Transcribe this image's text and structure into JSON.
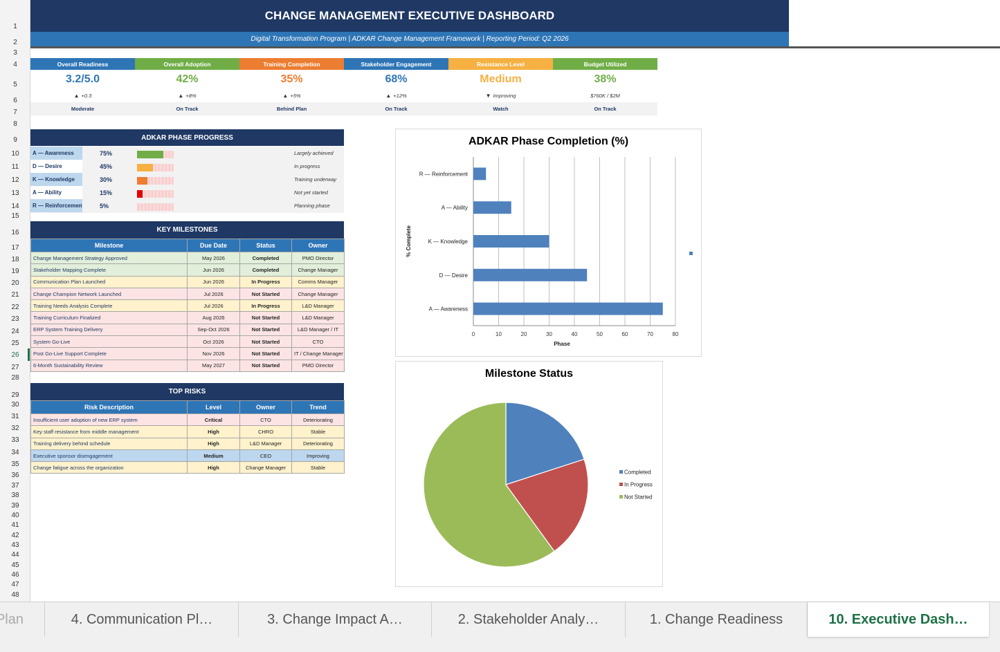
{
  "title": "CHANGE MANAGEMENT EXECUTIVE DASHBOARD",
  "subtitle": "Digital Transformation Program  |  ADKAR Change Management Framework  |  Reporting Period: Q2 2026",
  "row_numbers": [
    "1",
    "2",
    "3",
    "4",
    "5",
    "6",
    "7",
    "8",
    "9",
    "10",
    "11",
    "12",
    "13",
    "14",
    "15",
    "16",
    "17",
    "18",
    "19",
    "20",
    "21",
    "22",
    "23",
    "24",
    "25",
    "26",
    "27",
    "28",
    "29",
    "30",
    "31",
    "32",
    "33",
    "34",
    "35",
    "36",
    "37",
    "38",
    "39",
    "40",
    "41",
    "42",
    "43",
    "44",
    "45",
    "46",
    "47",
    "48"
  ],
  "kpis": [
    {
      "label": "Overall Readiness",
      "value": "3.2/5.0",
      "arrow": "▲",
      "delta": "+0.3",
      "status": "Moderate",
      "head_color": "#2e75b6",
      "value_color": "#2e75b6"
    },
    {
      "label": "Overall Adoption",
      "value": "42%",
      "arrow": "▲",
      "delta": "+8%",
      "status": "On Track",
      "head_color": "#70ad47",
      "value_color": "#70ad47"
    },
    {
      "label": "Training Completion",
      "value": "35%",
      "arrow": "▲",
      "delta": "+5%",
      "status": "Behind Plan",
      "head_color": "#ed7d31",
      "value_color": "#ed7d31"
    },
    {
      "label": "Stakeholder Engagement",
      "value": "68%",
      "arrow": "▲",
      "delta": "+12%",
      "status": "On Track",
      "head_color": "#2e75b6",
      "value_color": "#2e75b6"
    },
    {
      "label": "Resistance Level",
      "value": "Medium",
      "arrow": "▼",
      "delta": "Improving",
      "status": "Watch",
      "head_color": "#f6b142",
      "value_color": "#f6b142"
    },
    {
      "label": "Budget Utilized",
      "value": "38%",
      "arrow": "",
      "delta": "$760K / $2M",
      "status": "On Track",
      "head_color": "#70ad47",
      "value_color": "#70ad47"
    }
  ],
  "adkar_section": {
    "header": "ADKAR PHASE PROGRESS",
    "rows": [
      {
        "label": "A — Awareness",
        "pct_text": "75%",
        "pct": 0.75,
        "note": "Largely achieved",
        "fill_color": "#70ad47",
        "label_bg": "#bdd7ee"
      },
      {
        "label": "D — Desire",
        "pct_text": "45%",
        "pct": 0.45,
        "note": "In progress",
        "fill_color": "#f6b142",
        "label_bg": "#ffffff"
      },
      {
        "label": "K — Knowledge",
        "pct_text": "30%",
        "pct": 0.3,
        "note": "Training underway",
        "fill_color": "#ed7d31",
        "label_bg": "#bdd7ee"
      },
      {
        "label": "A — Ability",
        "pct_text": "15%",
        "pct": 0.15,
        "note": "Not yet started",
        "fill_color": "#e30000",
        "label_bg": "#ffffff"
      },
      {
        "label": "R — Reinforcement",
        "pct_text": "5%",
        "pct": 0.05,
        "note": "Planning phase",
        "fill_color": "#f8d0d0",
        "label_bg": "#bdd7ee"
      }
    ]
  },
  "milestones": {
    "header": "KEY MILESTONES",
    "columns": [
      "Milestone",
      "Due Date",
      "Status",
      "Owner"
    ],
    "rows": [
      {
        "name": "Change Management Strategy Approved",
        "due": "May 2026",
        "status": "Completed",
        "owner": "PMO Director",
        "bg": "#e2efda"
      },
      {
        "name": "Stakeholder Mapping Complete",
        "due": "Jun 2026",
        "status": "Completed",
        "owner": "Change Manager",
        "bg": "#e2efda"
      },
      {
        "name": "Communication Plan Launched",
        "due": "Jun 2026",
        "status": "In Progress",
        "owner": "Comms Manager",
        "bg": "#fff2cc"
      },
      {
        "name": "Change Champion Network Launched",
        "due": "Jul 2026",
        "status": "Not Started",
        "owner": "Change Manager",
        "bg": "#fce4e4"
      },
      {
        "name": "Training Needs Analysis Complete",
        "due": "Jul 2026",
        "status": "In Progress",
        "owner": "L&D Manager",
        "bg": "#fff2cc"
      },
      {
        "name": "Training Curriculum Finalized",
        "due": "Aug 2026",
        "status": "Not Started",
        "owner": "L&D Manager",
        "bg": "#fce4e4"
      },
      {
        "name": "ERP System Training Delivery",
        "due": "Sep-Oct 2026",
        "status": "Not Started",
        "owner": "L&D Manager / IT",
        "bg": "#fce4e4"
      },
      {
        "name": "System Go-Live",
        "due": "Oct 2026",
        "status": "Not Started",
        "owner": "CTO",
        "bg": "#fce4e4"
      },
      {
        "name": "Post Go-Live Support Complete",
        "due": "Nov 2026",
        "status": "Not Started",
        "owner": "IT / Change Manager",
        "bg": "#fce4e4"
      },
      {
        "name": "6-Month Sustainability Review",
        "due": "May 2027",
        "status": "Not Started",
        "owner": "PMO Director",
        "bg": "#fce4e4"
      }
    ]
  },
  "risks": {
    "header": "TOP RISKS",
    "columns": [
      "Risk Description",
      "Level",
      "Owner",
      "Trend"
    ],
    "rows": [
      {
        "desc": "Insufficient user adoption of new ERP system",
        "level": "Critical",
        "owner": "CTO",
        "trend": "Deteriorating",
        "bg": "#fce4e4"
      },
      {
        "desc": "Key staff resistance from middle management",
        "level": "High",
        "owner": "CHRO",
        "trend": "Stable",
        "bg": "#fff2cc"
      },
      {
        "desc": "Training delivery behind schedule",
        "level": "High",
        "owner": "L&D Manager",
        "trend": "Deteriorating",
        "bg": "#fff2cc"
      },
      {
        "desc": "Executive sponsor disengagement",
        "level": "Medium",
        "owner": "CEO",
        "trend": "Improving",
        "bg": "#bdd7ee"
      },
      {
        "desc": "Change fatigue across the organization",
        "level": "High",
        "owner": "Change Manager",
        "trend": "Stable",
        "bg": "#fff2cc"
      }
    ]
  },
  "chart_data": [
    {
      "type": "bar",
      "orientation": "horizontal",
      "title": "ADKAR Phase Completion (%)",
      "xlabel": "Phase",
      "ylabel": "% Complete",
      "categories": [
        "A — Awareness",
        "D — Desire",
        "K — Knowledge",
        "A — Ability",
        "R — Reinforcement"
      ],
      "values": [
        75,
        45,
        30,
        15,
        5
      ],
      "xlim": [
        0,
        80
      ],
      "ticks": [
        "0",
        "10",
        "20",
        "30",
        "40",
        "50",
        "60",
        "70",
        "80"
      ],
      "grid": true,
      "bar_color": "#4f81bd"
    },
    {
      "type": "pie",
      "title": "Milestone Status",
      "categories": [
        "Completed",
        "In Progress",
        "Not Started"
      ],
      "values": [
        2,
        2,
        6
      ],
      "colors": [
        "#4f81bd",
        "#c0504d",
        "#9bbb59"
      ],
      "legend": "right"
    }
  ],
  "tabs": [
    {
      "label": "Plan",
      "active": false
    },
    {
      "label": "4. Communication Pl…",
      "active": false
    },
    {
      "label": "3. Change Impact A…",
      "active": false
    },
    {
      "label": "2. Stakeholder Analy…",
      "active": false
    },
    {
      "label": "1. Change Readiness",
      "active": false
    },
    {
      "label": "10. Executive Dash…",
      "active": true
    }
  ]
}
